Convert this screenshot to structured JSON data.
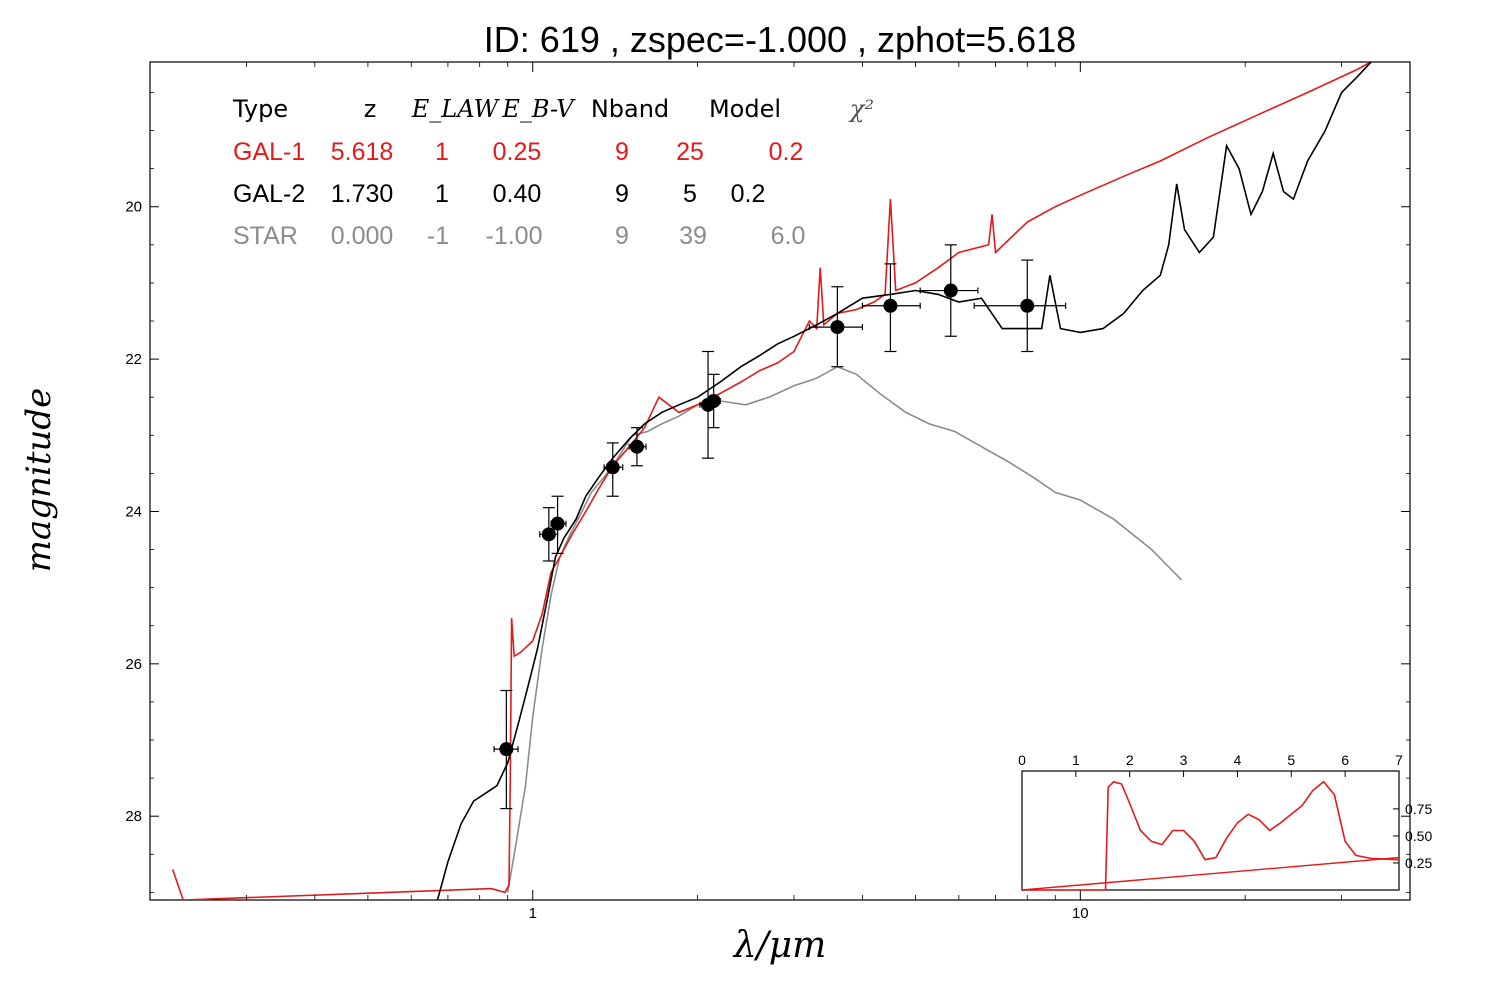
{
  "chart_data": {
    "type": "line",
    "title": "ID:  619   , zspec=-1.000 , zphot=5.618",
    "xlabel": "λ/μm",
    "ylabel": "magnitude",
    "x_scale": "log",
    "xlim": [
      0.2,
      40
    ],
    "ylim": [
      29.1,
      18.1
    ],
    "y_inverted": true,
    "x_ticks": [
      1,
      10
    ],
    "y_ticks": [
      20,
      22,
      24,
      26,
      28
    ],
    "colors": {
      "gal1": "#e31a1c",
      "gal2": "#000000",
      "star": "#8c8c8c"
    },
    "legend_table": {
      "headers": [
        "Type",
        "z",
        "E_LAW",
        "E_B-V",
        "Nband",
        "Model",
        "χ²"
      ],
      "rows": [
        {
          "name": "GAL-1",
          "color": "#e31a1c",
          "cells": [
            "GAL-1",
            "5.618",
            "1",
            "0.25",
            "9",
            "25",
            "0.2"
          ]
        },
        {
          "name": "GAL-2",
          "color": "#000000",
          "cells": [
            "GAL-2",
            "1.730",
            "1",
            "0.40",
            "9",
            "5",
            "0.2"
          ]
        },
        {
          "name": "STAR",
          "color": "#8c8c8c",
          "cells": [
            "STAR",
            "0.000",
            "-1",
            "-1.00",
            "9",
            "39",
            "6.0"
          ]
        }
      ]
    },
    "photometry": [
      {
        "x": 0.895,
        "y": 27.12,
        "xerr": [
          0.85,
          0.94
        ],
        "yerr": [
          26.35,
          27.9
        ]
      },
      {
        "x": 1.07,
        "y": 24.3,
        "xerr": [
          1.03,
          1.11
        ],
        "yerr": [
          23.95,
          24.65
        ]
      },
      {
        "x": 1.11,
        "y": 24.16,
        "xerr": [
          1.08,
          1.15
        ],
        "yerr": [
          23.8,
          24.55
        ]
      },
      {
        "x": 1.4,
        "y": 23.42,
        "xerr": [
          1.35,
          1.46
        ],
        "yerr": [
          23.1,
          23.8
        ]
      },
      {
        "x": 1.55,
        "y": 23.15,
        "xerr": [
          1.5,
          1.61
        ],
        "yerr": [
          22.9,
          23.4
        ]
      },
      {
        "x": 2.09,
        "y": 22.6,
        "xerr": [
          2.02,
          2.15
        ],
        "yerr": [
          21.9,
          23.3
        ]
      },
      {
        "x": 2.14,
        "y": 22.55,
        "xerr": [
          2.08,
          2.2
        ],
        "yerr": [
          22.2,
          22.9
        ]
      },
      {
        "x": 3.6,
        "y": 21.58,
        "xerr": [
          3.2,
          4.0
        ],
        "yerr": [
          21.05,
          22.1
        ]
      },
      {
        "x": 4.5,
        "y": 21.3,
        "xerr": [
          4.0,
          5.1
        ],
        "yerr": [
          20.75,
          21.9
        ]
      },
      {
        "x": 5.8,
        "y": 21.1,
        "xerr": [
          5.1,
          6.5
        ],
        "yerr": [
          20.5,
          21.7
        ]
      },
      {
        "x": 8.0,
        "y": 21.3,
        "xerr": [
          6.4,
          9.4
        ],
        "yerr": [
          20.7,
          21.9
        ]
      }
    ],
    "series": [
      {
        "key": "star",
        "color": "#8c8c8c",
        "points": [
          [
            0.9,
            29.0
          ],
          [
            0.93,
            28.4
          ],
          [
            0.97,
            27.6
          ],
          [
            1.0,
            26.7
          ],
          [
            1.04,
            25.8
          ],
          [
            1.08,
            25.1
          ],
          [
            1.12,
            24.6
          ],
          [
            1.17,
            24.3
          ],
          [
            1.22,
            24.05
          ],
          [
            1.28,
            23.75
          ],
          [
            1.35,
            23.55
          ],
          [
            1.43,
            23.3
          ],
          [
            1.52,
            23.0
          ],
          [
            1.62,
            22.95
          ],
          [
            1.72,
            22.85
          ],
          [
            1.85,
            22.75
          ],
          [
            2.0,
            22.6
          ],
          [
            2.2,
            22.55
          ],
          [
            2.45,
            22.6
          ],
          [
            2.7,
            22.5
          ],
          [
            3.0,
            22.35
          ],
          [
            3.3,
            22.25
          ],
          [
            3.6,
            22.1
          ],
          [
            3.9,
            22.2
          ],
          [
            4.3,
            22.45
          ],
          [
            4.8,
            22.7
          ],
          [
            5.3,
            22.85
          ],
          [
            5.9,
            22.95
          ],
          [
            6.6,
            23.15
          ],
          [
            7.4,
            23.35
          ],
          [
            8.2,
            23.55
          ],
          [
            9.0,
            23.75
          ],
          [
            10.0,
            23.85
          ],
          [
            11.5,
            24.1
          ],
          [
            13.5,
            24.5
          ],
          [
            15.3,
            24.9
          ]
        ]
      },
      {
        "key": "gal1",
        "color": "#e31a1c",
        "points": [
          [
            0.22,
            28.7
          ],
          [
            0.23,
            29.1
          ],
          [
            0.84,
            28.95
          ],
          [
            0.89,
            29.0
          ],
          [
            0.905,
            28.9
          ],
          [
            0.91,
            27.5
          ],
          [
            0.915,
            25.4
          ],
          [
            0.925,
            25.9
          ],
          [
            0.95,
            25.85
          ],
          [
            1.0,
            25.7
          ],
          [
            1.04,
            25.35
          ],
          [
            1.08,
            24.8
          ],
          [
            1.12,
            24.6
          ],
          [
            1.18,
            24.3
          ],
          [
            1.25,
            24.0
          ],
          [
            1.32,
            23.7
          ],
          [
            1.4,
            23.4
          ],
          [
            1.5,
            23.15
          ],
          [
            1.6,
            22.9
          ],
          [
            1.7,
            22.5
          ],
          [
            1.85,
            22.7
          ],
          [
            2.0,
            22.6
          ],
          [
            2.2,
            22.45
          ],
          [
            2.4,
            22.3
          ],
          [
            2.6,
            22.15
          ],
          [
            2.8,
            22.05
          ],
          [
            3.0,
            21.9
          ],
          [
            3.2,
            21.5
          ],
          [
            3.3,
            21.6
          ],
          [
            3.35,
            20.8
          ],
          [
            3.4,
            21.55
          ],
          [
            3.6,
            21.4
          ],
          [
            3.9,
            21.35
          ],
          [
            4.2,
            21.25
          ],
          [
            4.4,
            21.15
          ],
          [
            4.5,
            19.9
          ],
          [
            4.6,
            21.1
          ],
          [
            5.0,
            21.0
          ],
          [
            5.5,
            20.8
          ],
          [
            6.0,
            20.6
          ],
          [
            6.8,
            20.5
          ],
          [
            6.9,
            20.1
          ],
          [
            7.0,
            20.6
          ],
          [
            8.0,
            20.2
          ],
          [
            9.0,
            20.0
          ],
          [
            10.0,
            19.85
          ],
          [
            12.0,
            19.6
          ],
          [
            14.0,
            19.4
          ],
          [
            17.0,
            19.1
          ],
          [
            21.0,
            18.8
          ],
          [
            26.0,
            18.5
          ],
          [
            32.0,
            18.2
          ],
          [
            36.0,
            18.0
          ]
        ]
      },
      {
        "key": "gal2",
        "color": "#000000",
        "points": [
          [
            0.67,
            29.1
          ],
          [
            0.7,
            28.6
          ],
          [
            0.74,
            28.1
          ],
          [
            0.78,
            27.8
          ],
          [
            0.82,
            27.7
          ],
          [
            0.86,
            27.6
          ],
          [
            0.9,
            27.3
          ],
          [
            0.94,
            26.8
          ],
          [
            0.98,
            26.3
          ],
          [
            1.02,
            25.8
          ],
          [
            1.06,
            25.2
          ],
          [
            1.1,
            24.6
          ],
          [
            1.14,
            24.35
          ],
          [
            1.2,
            24.1
          ],
          [
            1.25,
            23.8
          ],
          [
            1.32,
            23.55
          ],
          [
            1.4,
            23.3
          ],
          [
            1.5,
            23.05
          ],
          [
            1.6,
            22.85
          ],
          [
            1.72,
            22.7
          ],
          [
            1.85,
            22.6
          ],
          [
            2.0,
            22.5
          ],
          [
            2.2,
            22.3
          ],
          [
            2.4,
            22.1
          ],
          [
            2.6,
            21.95
          ],
          [
            2.8,
            21.8
          ],
          [
            3.0,
            21.7
          ],
          [
            3.3,
            21.55
          ],
          [
            3.6,
            21.4
          ],
          [
            4.0,
            21.2
          ],
          [
            4.5,
            21.15
          ],
          [
            5.0,
            21.1
          ],
          [
            5.5,
            21.15
          ],
          [
            6.0,
            21.25
          ],
          [
            6.6,
            21.2
          ],
          [
            7.2,
            21.6
          ],
          [
            8.0,
            21.6
          ],
          [
            8.5,
            21.6
          ],
          [
            8.8,
            20.9
          ],
          [
            9.2,
            21.6
          ],
          [
            10.0,
            21.65
          ],
          [
            11.0,
            21.6
          ],
          [
            12.0,
            21.4
          ],
          [
            13.0,
            21.1
          ],
          [
            14.0,
            20.9
          ],
          [
            14.5,
            20.5
          ],
          [
            15.0,
            19.7
          ],
          [
            15.5,
            20.3
          ],
          [
            16.5,
            20.6
          ],
          [
            17.5,
            20.4
          ],
          [
            18.5,
            19.2
          ],
          [
            19.5,
            19.5
          ],
          [
            20.5,
            20.1
          ],
          [
            21.5,
            19.8
          ],
          [
            22.5,
            19.3
          ],
          [
            23.5,
            19.8
          ],
          [
            24.5,
            19.9
          ],
          [
            26.0,
            19.4
          ],
          [
            28.0,
            19.0
          ],
          [
            30.0,
            18.5
          ],
          [
            32.0,
            18.3
          ],
          [
            35.0,
            18.0
          ]
        ]
      }
    ],
    "inset": {
      "x_ticks": [
        "0",
        "1",
        "2",
        "3",
        "4",
        "5",
        "6",
        "7"
      ],
      "y_ticks": [
        "0.75",
        "0.50",
        "0.25"
      ],
      "xlim": [
        0,
        7
      ],
      "ylim": [
        0,
        1.1
      ],
      "color": "#e31a1c",
      "pdf": [
        [
          0,
          0
        ],
        [
          1.55,
          0
        ],
        [
          1.6,
          0.95
        ],
        [
          1.7,
          1.0
        ],
        [
          1.85,
          0.98
        ],
        [
          2.0,
          0.8
        ],
        [
          2.2,
          0.55
        ],
        [
          2.4,
          0.45
        ],
        [
          2.6,
          0.42
        ],
        [
          2.8,
          0.55
        ],
        [
          3.0,
          0.55
        ],
        [
          3.2,
          0.45
        ],
        [
          3.4,
          0.28
        ],
        [
          3.6,
          0.3
        ],
        [
          3.8,
          0.48
        ],
        [
          4.0,
          0.62
        ],
        [
          4.2,
          0.7
        ],
        [
          4.4,
          0.65
        ],
        [
          4.6,
          0.55
        ],
        [
          4.8,
          0.62
        ],
        [
          5.0,
          0.7
        ],
        [
          5.2,
          0.78
        ],
        [
          5.4,
          0.92
        ],
        [
          5.6,
          1.0
        ],
        [
          5.8,
          0.88
        ],
        [
          6.0,
          0.45
        ],
        [
          6.2,
          0.32
        ],
        [
          6.5,
          0.29
        ],
        [
          7.0,
          0.28
        ]
      ],
      "line": [
        [
          0,
          0
        ],
        [
          7,
          0.3
        ]
      ]
    }
  }
}
